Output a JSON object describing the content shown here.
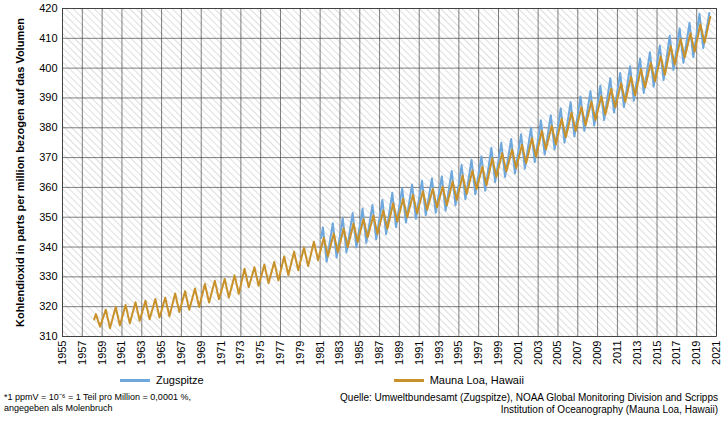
{
  "chart_data": {
    "type": "line",
    "ylabel": "Kohlendioxid in parts per million bezogen auf das Volumen",
    "xlim": [
      1955,
      2021
    ],
    "xticks": [
      1955,
      1957,
      1959,
      1961,
      1963,
      1965,
      1967,
      1969,
      1971,
      1973,
      1975,
      1977,
      1979,
      1981,
      1983,
      1985,
      1987,
      1989,
      1991,
      1993,
      1995,
      1997,
      1999,
      2001,
      2003,
      2005,
      2007,
      2009,
      2011,
      2013,
      2015,
      2017,
      2019,
      2021
    ],
    "ylim": [
      310,
      420
    ],
    "yticks": [
      310,
      320,
      330,
      340,
      350,
      360,
      370,
      380,
      390,
      400,
      410,
      420
    ],
    "grid": true,
    "legend": "bottom",
    "footnote": [
      "*1 ppmV = 10⁻⁶ = 1 Teil pro Million = 0,0001 %,",
      "angegeben als Molenbruch"
    ],
    "source": [
      "Quelle: Umweltbundesamt (Zugspitze), NOAA Global Monitoring Division and Scripps",
      "Institution of Oceanography  (Mauna Loa, Hawaii)"
    ],
    "series": [
      {
        "name": "Zugspitze",
        "color": "#6fa8dc",
        "x": [
          1981.1,
          1981.28,
          1981.66,
          1982.28,
          1982.66,
          1983.28,
          1983.66,
          1984.28,
          1984.66,
          1985.28,
          1985.66,
          1986.28,
          1986.66,
          1987.28,
          1987.66,
          1988.28,
          1988.66,
          1989.28,
          1989.66,
          1990.28,
          1990.66,
          1991.28,
          1991.66,
          1992.28,
          1992.66,
          1993.28,
          1993.66,
          1994.28,
          1994.66,
          1995.28,
          1995.66,
          1996.28,
          1996.66,
          1997.28,
          1997.66,
          1998.28,
          1998.66,
          1999.28,
          1999.66,
          2000.28,
          2000.66,
          2001.28,
          2001.66,
          2002.28,
          2002.66,
          2003.28,
          2003.66,
          2004.28,
          2004.66,
          2005.28,
          2005.66,
          2006.28,
          2006.66,
          2007.28,
          2007.66,
          2008.28,
          2008.66,
          2009.28,
          2009.66,
          2010.28,
          2010.66,
          2011.28,
          2011.66,
          2012.28,
          2012.66,
          2013.28,
          2013.66,
          2014.28,
          2014.66,
          2015.28,
          2015.66,
          2016.28,
          2016.66,
          2017.28,
          2017.66,
          2018.28,
          2018.66,
          2019.28,
          2019.66,
          2020.28
        ],
        "values": [
          343.0,
          346.6,
          335.1,
          348.0,
          336.5,
          349.7,
          338.2,
          351.4,
          339.9,
          352.9,
          341.4,
          354.1,
          342.6,
          355.8,
          344.3,
          358.2,
          346.7,
          359.7,
          348.2,
          361.0,
          349.5,
          362.2,
          350.7,
          363.0,
          351.5,
          363.7,
          352.2,
          365.5,
          354.0,
          367.5,
          356.0,
          369.2,
          357.7,
          370.4,
          358.9,
          373.3,
          361.8,
          375.0,
          363.5,
          376.2,
          364.7,
          377.8,
          366.3,
          380.0,
          368.5,
          382.5,
          371.0,
          384.2,
          372.7,
          386.5,
          375.0,
          388.6,
          377.1,
          390.5,
          379.0,
          392.3,
          380.8,
          394.1,
          382.6,
          396.6,
          385.1,
          398.4,
          386.9,
          400.6,
          389.1,
          403.2,
          391.7,
          405.3,
          393.8,
          407.5,
          396.0,
          410.9,
          399.4,
          413.3,
          401.8,
          415.2,
          403.7,
          418.2,
          406.7,
          418.5
        ]
      },
      {
        "name": "Mauna Loa, Hawaii",
        "color": "#c8912a",
        "x": [
          1958.2,
          1958.37,
          1958.79,
          1959.37,
          1959.79,
          1960.37,
          1960.79,
          1961.37,
          1961.79,
          1962.37,
          1962.79,
          1963.37,
          1963.79,
          1964.37,
          1964.79,
          1965.37,
          1965.79,
          1966.37,
          1966.79,
          1967.37,
          1967.79,
          1968.37,
          1968.79,
          1969.37,
          1969.79,
          1970.37,
          1970.79,
          1971.37,
          1971.79,
          1972.37,
          1972.79,
          1973.37,
          1973.79,
          1974.37,
          1974.79,
          1975.37,
          1975.79,
          1976.37,
          1976.79,
          1977.37,
          1977.79,
          1978.37,
          1978.79,
          1979.37,
          1979.79,
          1980.37,
          1980.79,
          1981.37,
          1981.79,
          1982.37,
          1982.79,
          1983.37,
          1983.79,
          1984.37,
          1984.79,
          1985.37,
          1985.79,
          1986.37,
          1986.79,
          1987.37,
          1987.79,
          1988.37,
          1988.79,
          1989.37,
          1989.79,
          1990.37,
          1990.79,
          1991.37,
          1991.79,
          1992.37,
          1992.79,
          1993.37,
          1993.79,
          1994.37,
          1994.79,
          1995.37,
          1995.79,
          1996.37,
          1996.79,
          1997.37,
          1997.79,
          1998.37,
          1998.79,
          1999.37,
          1999.79,
          2000.37,
          2000.79,
          2001.37,
          2001.79,
          2002.37,
          2002.79,
          2003.37,
          2003.79,
          2004.37,
          2004.79,
          2005.37,
          2005.79,
          2006.37,
          2006.79,
          2007.37,
          2007.79,
          2008.37,
          2008.79,
          2009.37,
          2009.79,
          2010.37,
          2010.79,
          2011.37,
          2011.79,
          2012.37,
          2012.79,
          2013.37,
          2013.79,
          2014.37,
          2014.79,
          2015.37,
          2015.79,
          2016.37,
          2016.79,
          2017.37,
          2017.79,
          2018.37,
          2018.79,
          2019.37,
          2019.79,
          2020.37
        ],
        "values": [
          315.7,
          317.5,
          313.3,
          319.0,
          312.8,
          319.9,
          313.7,
          320.6,
          314.4,
          321.5,
          315.3,
          322.0,
          315.8,
          322.6,
          316.4,
          323.0,
          316.8,
          324.4,
          318.2,
          325.2,
          319.0,
          326.1,
          319.9,
          327.6,
          321.4,
          328.7,
          322.5,
          329.3,
          323.1,
          330.5,
          324.3,
          332.7,
          326.5,
          333.2,
          327.0,
          334.1,
          327.9,
          335.0,
          328.8,
          336.8,
          330.6,
          338.4,
          332.2,
          339.8,
          333.6,
          341.8,
          335.6,
          343.1,
          336.9,
          344.5,
          338.3,
          346.2,
          340.0,
          347.9,
          341.7,
          349.4,
          343.2,
          350.6,
          344.4,
          352.3,
          346.1,
          354.7,
          348.5,
          356.2,
          350.0,
          357.5,
          351.3,
          358.7,
          352.5,
          359.5,
          353.3,
          360.2,
          354.0,
          362.0,
          355.8,
          364.0,
          357.8,
          365.7,
          359.5,
          366.9,
          360.7,
          369.8,
          363.6,
          371.5,
          365.3,
          372.7,
          366.5,
          374.3,
          368.1,
          376.5,
          370.3,
          379.0,
          372.8,
          380.7,
          374.5,
          383.0,
          376.8,
          385.1,
          378.9,
          387.0,
          380.8,
          388.8,
          382.6,
          390.6,
          384.4,
          393.1,
          386.9,
          394.9,
          388.7,
          397.1,
          390.9,
          399.7,
          393.5,
          401.8,
          395.6,
          404.0,
          397.8,
          407.4,
          401.2,
          409.8,
          403.6,
          411.7,
          405.5,
          414.7,
          408.5,
          417.2
        ]
      }
    ]
  }
}
